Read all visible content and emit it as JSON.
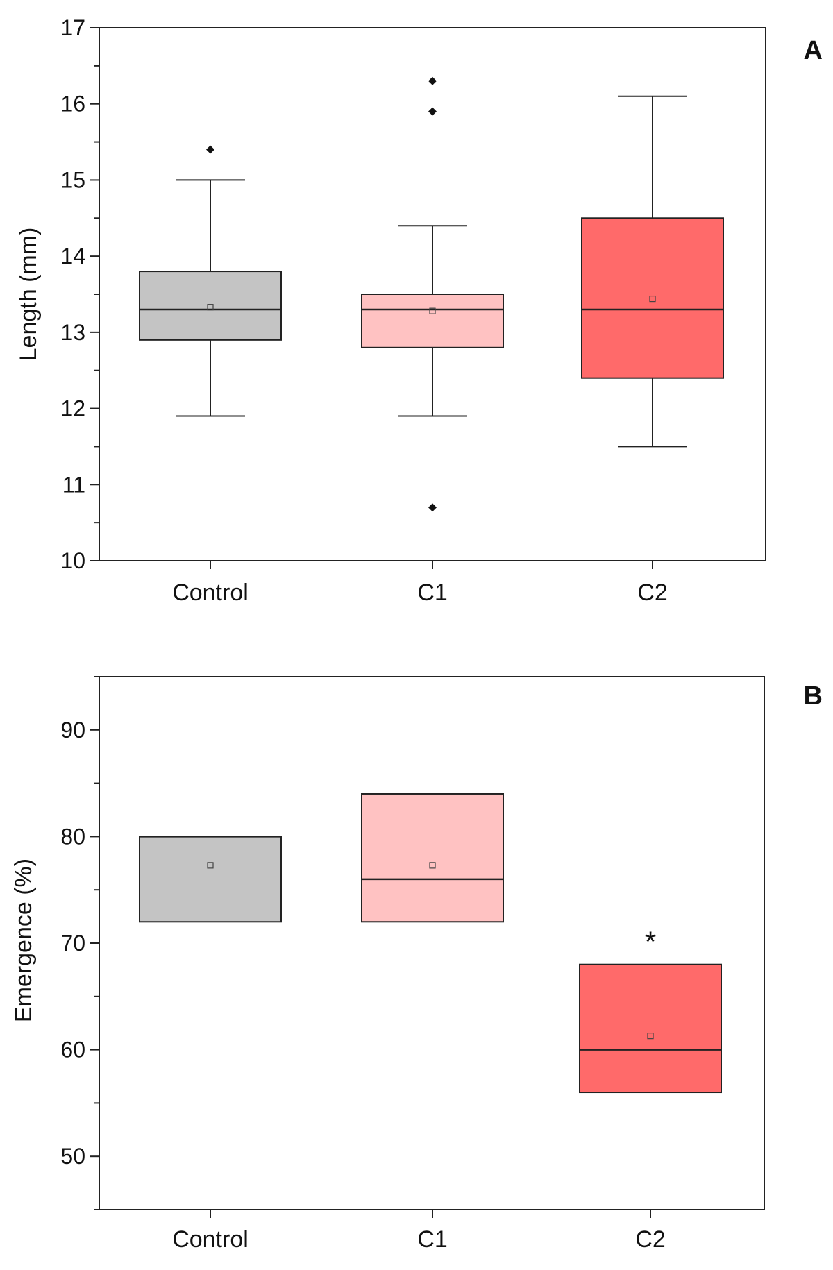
{
  "chart_data": [
    {
      "type": "boxplot",
      "panel_label": "A",
      "ylabel": "Length (mm)",
      "xlabel": "",
      "ylim": [
        10,
        17
      ],
      "yticks": [
        10,
        11,
        12,
        13,
        14,
        15,
        16,
        17
      ],
      "grid": false,
      "categories": [
        "Control",
        "C1",
        "C2"
      ],
      "series": [
        {
          "name": "Control",
          "q1": 12.9,
          "median": 13.3,
          "q3": 13.8,
          "whisker_low": 11.9,
          "whisker_high": 15.0,
          "mean": 13.33,
          "outliers": [
            15.4
          ],
          "color": "#c4c4c4"
        },
        {
          "name": "C1",
          "q1": 12.8,
          "median": 13.3,
          "q3": 13.5,
          "whisker_low": 11.9,
          "whisker_high": 14.4,
          "mean": 13.28,
          "outliers": [
            16.3,
            15.9,
            10.7
          ],
          "color": "#ffc2c2"
        },
        {
          "name": "C2",
          "q1": 12.4,
          "median": 13.3,
          "q3": 14.5,
          "whisker_low": 11.5,
          "whisker_high": 16.1,
          "mean": 13.44,
          "outliers": [],
          "color": "#ff6a6a"
        }
      ]
    },
    {
      "type": "boxplot",
      "panel_label": "B",
      "ylabel": "Emergence (%)",
      "xlabel": "",
      "ylim": [
        45,
        95
      ],
      "yticks": [
        50,
        60,
        70,
        80,
        90
      ],
      "grid": false,
      "categories": [
        "Control",
        "C1",
        "C2"
      ],
      "series": [
        {
          "name": "Control",
          "q1": 72,
          "median": 80,
          "q3": 80,
          "mean": 77.3,
          "outliers": [],
          "color": "#c4c4c4",
          "annotation": ""
        },
        {
          "name": "C1",
          "q1": 72,
          "median": 76,
          "q3": 84,
          "mean": 77.3,
          "outliers": [],
          "color": "#ffc2c2",
          "annotation": ""
        },
        {
          "name": "C2",
          "q1": 56,
          "median": 60,
          "q3": 68,
          "mean": 61.3,
          "outliers": [],
          "color": "#ff6a6a",
          "annotation": "*"
        }
      ]
    }
  ]
}
